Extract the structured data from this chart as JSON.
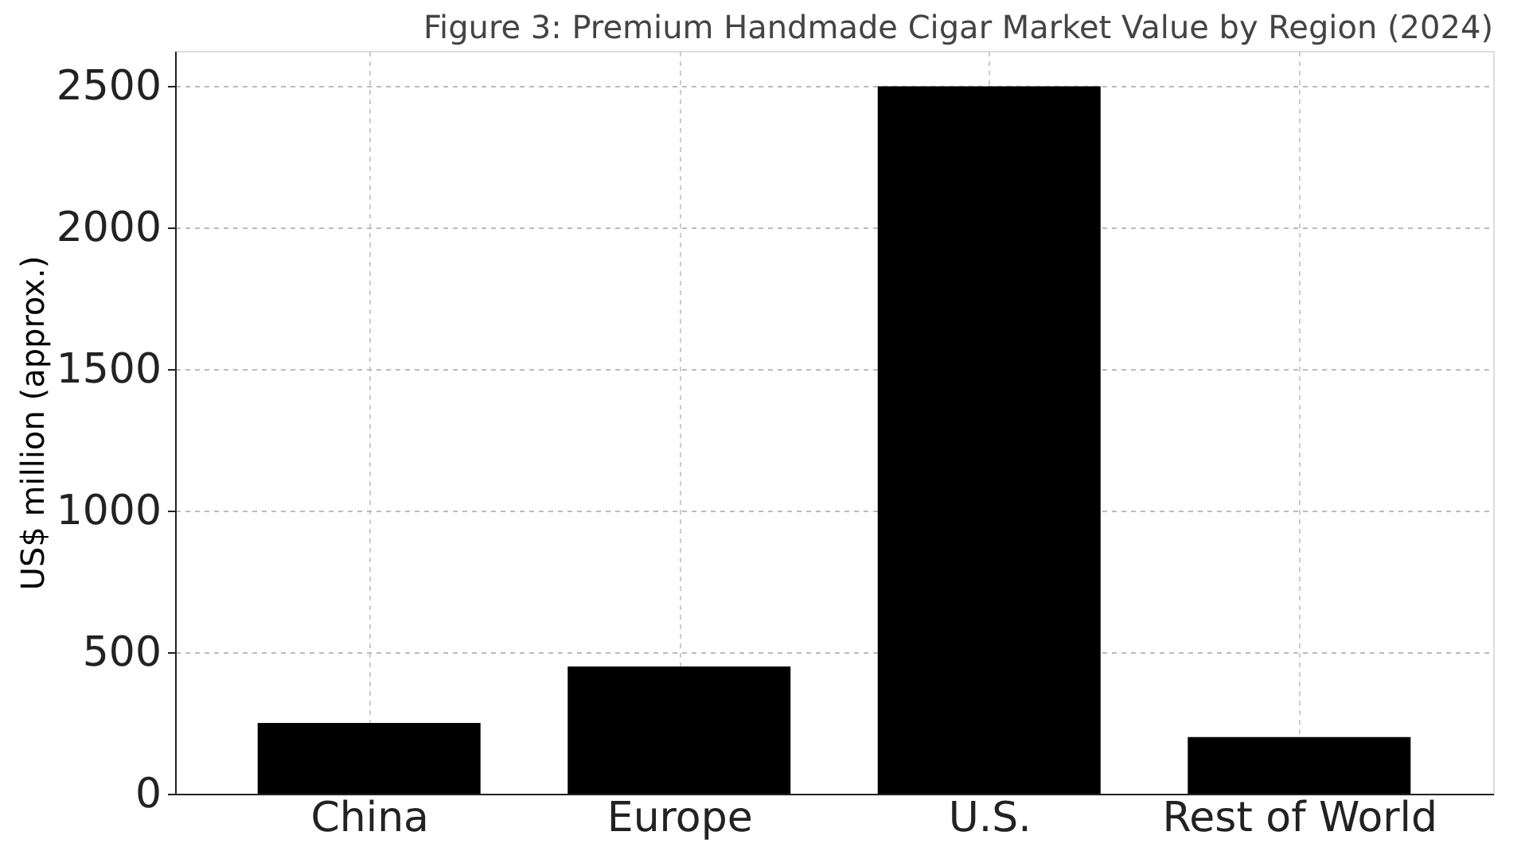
{
  "chart_data": {
    "type": "bar",
    "title": "Figure 3: Premium Handmade Cigar Market Value by Region (2024)",
    "ylabel": "US$ million (approx.)",
    "categories": [
      "China",
      "Europe",
      "U.S.",
      "Rest of World"
    ],
    "values": [
      250,
      450,
      2500,
      200
    ],
    "color": "#000000",
    "ylim": [
      0,
      2625
    ],
    "yticks": [
      0,
      500,
      1000,
      1500,
      2000,
      2500
    ],
    "grid": true
  }
}
